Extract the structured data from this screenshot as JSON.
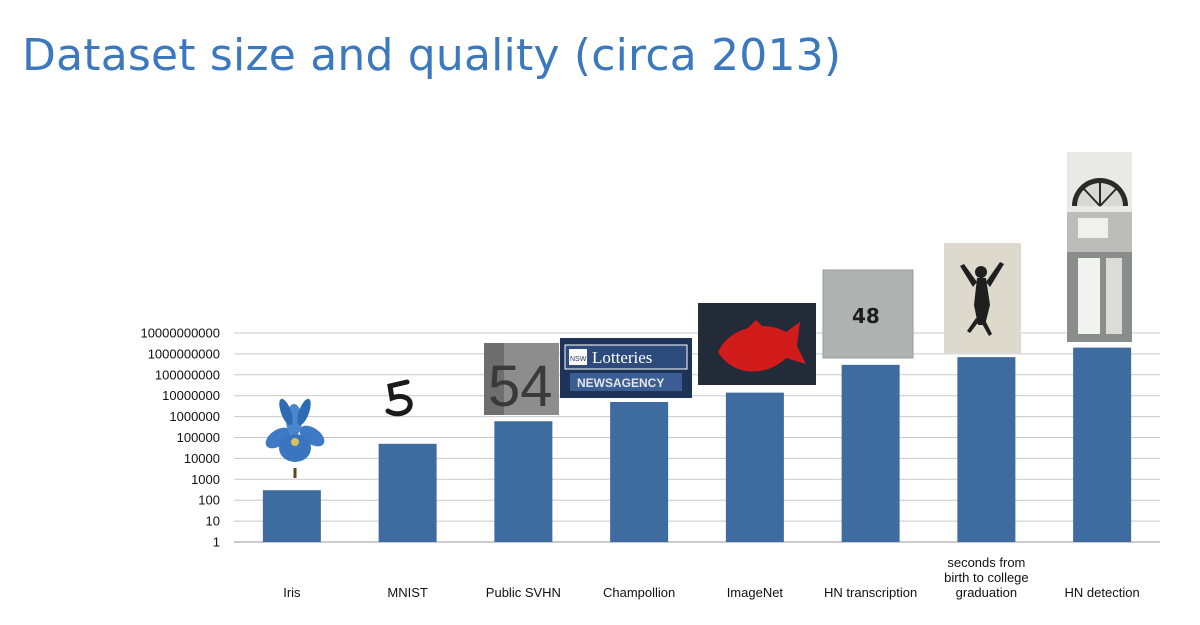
{
  "slide": {
    "title": "Dataset size and quality (circa 2013)"
  },
  "colors": {
    "bar": "#3e6ba0",
    "grid": "#c8c8c8",
    "title": "#3b78be"
  },
  "chart_data": {
    "type": "bar",
    "scale": "log10",
    "ylim": [
      1,
      10000000000
    ],
    "yticks": [
      "1",
      "10",
      "100",
      "1000",
      "10000",
      "100000",
      "1000000",
      "10000000",
      "100000000",
      "1000000000",
      "10000000000"
    ],
    "grid": true,
    "categories": [
      [
        "Iris"
      ],
      [
        "MNIST"
      ],
      [
        "Public SVHN"
      ],
      [
        "Champollion"
      ],
      [
        "ImageNet"
      ],
      [
        "HN transcription"
      ],
      [
        "seconds from",
        "birth to college",
        "graduation"
      ],
      [
        "HN detection"
      ]
    ],
    "values": [
      300,
      50000,
      600000,
      5000000,
      14000000,
      300000000,
      700000000,
      2000000000
    ],
    "thumbnails": [
      "iris-flower",
      "mnist-digit",
      "svhn-house-number",
      "champollion-sign",
      "imagenet-fish",
      "hn-transcription-48",
      "graduation-jump",
      "hn-detection-door"
    ]
  }
}
